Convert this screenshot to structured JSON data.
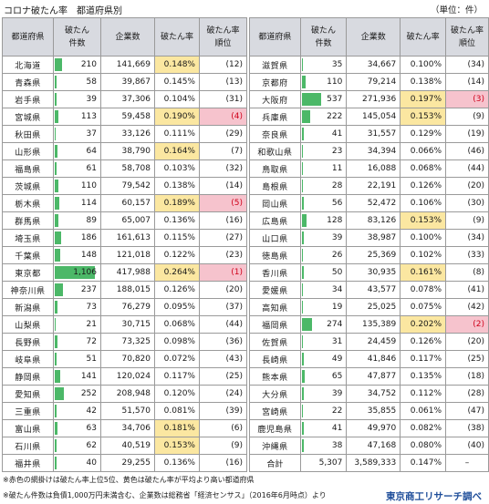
{
  "title": "コロナ破たん率　都道府県別",
  "unit": "（単位：件）",
  "headers": {
    "pref": "都道府県",
    "count_line1": "破たん",
    "count_line2": "件数",
    "companies": "企業数",
    "rate": "破たん率",
    "rank_line1": "破たん率",
    "rank_line2": "順位"
  },
  "colors": {
    "bar": "#4cb868",
    "top5": "#f6c3cd",
    "above_avg": "#fbe7a1",
    "header": "#d8dae0",
    "source": "#1f4e9a"
  },
  "bar_max": 1106,
  "left_rows": [
    {
      "pref": "北海道",
      "count": 210,
      "count_text": "210",
      "companies": "141,669",
      "rate": "0.148%",
      "rank": "(12)",
      "hl": "yellow"
    },
    {
      "pref": "青森県",
      "count": 58,
      "count_text": "58",
      "companies": "39,867",
      "rate": "0.145%",
      "rank": "(13)",
      "hl": ""
    },
    {
      "pref": "岩手県",
      "count": 39,
      "count_text": "39",
      "companies": "37,306",
      "rate": "0.104%",
      "rank": "(31)",
      "hl": ""
    },
    {
      "pref": "宮城県",
      "count": 113,
      "count_text": "113",
      "companies": "59,458",
      "rate": "0.190%",
      "rank": "(4)",
      "hl": "top"
    },
    {
      "pref": "秋田県",
      "count": 37,
      "count_text": "37",
      "companies": "33,126",
      "rate": "0.111%",
      "rank": "(29)",
      "hl": ""
    },
    {
      "pref": "山形県",
      "count": 64,
      "count_text": "64",
      "companies": "38,790",
      "rate": "0.164%",
      "rank": "(7)",
      "hl": "yellow"
    },
    {
      "pref": "福島県",
      "count": 61,
      "count_text": "61",
      "companies": "58,708",
      "rate": "0.103%",
      "rank": "(32)",
      "hl": ""
    },
    {
      "pref": "茨城県",
      "count": 110,
      "count_text": "110",
      "companies": "79,542",
      "rate": "0.138%",
      "rank": "(14)",
      "hl": ""
    },
    {
      "pref": "栃木県",
      "count": 114,
      "count_text": "114",
      "companies": "60,157",
      "rate": "0.189%",
      "rank": "(5)",
      "hl": "top"
    },
    {
      "pref": "群馬県",
      "count": 89,
      "count_text": "89",
      "companies": "65,007",
      "rate": "0.136%",
      "rank": "(16)",
      "hl": ""
    },
    {
      "pref": "埼玉県",
      "count": 186,
      "count_text": "186",
      "companies": "161,613",
      "rate": "0.115%",
      "rank": "(27)",
      "hl": ""
    },
    {
      "pref": "千葉県",
      "count": 148,
      "count_text": "148",
      "companies": "121,018",
      "rate": "0.122%",
      "rank": "(23)",
      "hl": ""
    },
    {
      "pref": "東京都",
      "count": 1106,
      "count_text": "1,106",
      "companies": "417,988",
      "rate": "0.264%",
      "rank": "(1)",
      "hl": "top"
    },
    {
      "pref": "神奈川県",
      "count": 237,
      "count_text": "237",
      "companies": "188,015",
      "rate": "0.126%",
      "rank": "(20)",
      "hl": ""
    },
    {
      "pref": "新潟県",
      "count": 73,
      "count_text": "73",
      "companies": "76,279",
      "rate": "0.095%",
      "rank": "(37)",
      "hl": ""
    },
    {
      "pref": "山梨県",
      "count": 21,
      "count_text": "21",
      "companies": "30,715",
      "rate": "0.068%",
      "rank": "(44)",
      "hl": ""
    },
    {
      "pref": "長野県",
      "count": 72,
      "count_text": "72",
      "companies": "73,325",
      "rate": "0.098%",
      "rank": "(36)",
      "hl": ""
    },
    {
      "pref": "岐阜県",
      "count": 51,
      "count_text": "51",
      "companies": "70,820",
      "rate": "0.072%",
      "rank": "(43)",
      "hl": ""
    },
    {
      "pref": "静岡県",
      "count": 141,
      "count_text": "141",
      "companies": "120,024",
      "rate": "0.117%",
      "rank": "(25)",
      "hl": ""
    },
    {
      "pref": "愛知県",
      "count": 252,
      "count_text": "252",
      "companies": "208,948",
      "rate": "0.120%",
      "rank": "(24)",
      "hl": ""
    },
    {
      "pref": "三重県",
      "count": 42,
      "count_text": "42",
      "companies": "51,570",
      "rate": "0.081%",
      "rank": "(39)",
      "hl": ""
    },
    {
      "pref": "富山県",
      "count": 63,
      "count_text": "63",
      "companies": "34,706",
      "rate": "0.181%",
      "rank": "(6)",
      "hl": "yellow"
    },
    {
      "pref": "石川県",
      "count": 62,
      "count_text": "62",
      "companies": "40,519",
      "rate": "0.153%",
      "rank": "(9)",
      "hl": "yellow"
    },
    {
      "pref": "福井県",
      "count": 40,
      "count_text": "40",
      "companies": "29,255",
      "rate": "0.136%",
      "rank": "(16)",
      "hl": ""
    }
  ],
  "right_rows": [
    {
      "pref": "滋賀県",
      "count": 35,
      "count_text": "35",
      "companies": "34,667",
      "rate": "0.100%",
      "rank": "(34)",
      "hl": ""
    },
    {
      "pref": "京都府",
      "count": 110,
      "count_text": "110",
      "companies": "79,214",
      "rate": "0.138%",
      "rank": "(14)",
      "hl": ""
    },
    {
      "pref": "大阪府",
      "count": 537,
      "count_text": "537",
      "companies": "271,936",
      "rate": "0.197%",
      "rank": "(3)",
      "hl": "top"
    },
    {
      "pref": "兵庫県",
      "count": 222,
      "count_text": "222",
      "companies": "145,054",
      "rate": "0.153%",
      "rank": "(9)",
      "hl": "yellow"
    },
    {
      "pref": "奈良県",
      "count": 41,
      "count_text": "41",
      "companies": "31,557",
      "rate": "0.129%",
      "rank": "(19)",
      "hl": ""
    },
    {
      "pref": "和歌山県",
      "count": 23,
      "count_text": "23",
      "companies": "34,394",
      "rate": "0.066%",
      "rank": "(46)",
      "hl": ""
    },
    {
      "pref": "鳥取県",
      "count": 11,
      "count_text": "11",
      "companies": "16,088",
      "rate": "0.068%",
      "rank": "(44)",
      "hl": ""
    },
    {
      "pref": "島根県",
      "count": 28,
      "count_text": "28",
      "companies": "22,191",
      "rate": "0.126%",
      "rank": "(20)",
      "hl": ""
    },
    {
      "pref": "岡山県",
      "count": 56,
      "count_text": "56",
      "companies": "52,472",
      "rate": "0.106%",
      "rank": "(30)",
      "hl": ""
    },
    {
      "pref": "広島県",
      "count": 128,
      "count_text": "128",
      "companies": "83,126",
      "rate": "0.153%",
      "rank": "(9)",
      "hl": "yellow"
    },
    {
      "pref": "山口県",
      "count": 39,
      "count_text": "39",
      "companies": "38,987",
      "rate": "0.100%",
      "rank": "(34)",
      "hl": ""
    },
    {
      "pref": "徳島県",
      "count": 26,
      "count_text": "26",
      "companies": "25,369",
      "rate": "0.102%",
      "rank": "(33)",
      "hl": ""
    },
    {
      "pref": "香川県",
      "count": 50,
      "count_text": "50",
      "companies": "30,935",
      "rate": "0.161%",
      "rank": "(8)",
      "hl": "yellow"
    },
    {
      "pref": "愛媛県",
      "count": 34,
      "count_text": "34",
      "companies": "43,577",
      "rate": "0.078%",
      "rank": "(41)",
      "hl": ""
    },
    {
      "pref": "高知県",
      "count": 19,
      "count_text": "19",
      "companies": "25,025",
      "rate": "0.075%",
      "rank": "(42)",
      "hl": ""
    },
    {
      "pref": "福岡県",
      "count": 274,
      "count_text": "274",
      "companies": "135,389",
      "rate": "0.202%",
      "rank": "(2)",
      "hl": "top"
    },
    {
      "pref": "佐賀県",
      "count": 31,
      "count_text": "31",
      "companies": "24,459",
      "rate": "0.126%",
      "rank": "(20)",
      "hl": ""
    },
    {
      "pref": "長崎県",
      "count": 49,
      "count_text": "49",
      "companies": "41,846",
      "rate": "0.117%",
      "rank": "(25)",
      "hl": ""
    },
    {
      "pref": "熊本県",
      "count": 65,
      "count_text": "65",
      "companies": "47,877",
      "rate": "0.135%",
      "rank": "(18)",
      "hl": ""
    },
    {
      "pref": "大分県",
      "count": 39,
      "count_text": "39",
      "companies": "34,752",
      "rate": "0.112%",
      "rank": "(28)",
      "hl": ""
    },
    {
      "pref": "宮崎県",
      "count": 22,
      "count_text": "22",
      "companies": "35,855",
      "rate": "0.061%",
      "rank": "(47)",
      "hl": ""
    },
    {
      "pref": "鹿児島県",
      "count": 41,
      "count_text": "41",
      "companies": "49,970",
      "rate": "0.082%",
      "rank": "(38)",
      "hl": ""
    },
    {
      "pref": "沖縄県",
      "count": 38,
      "count_text": "38",
      "companies": "47,168",
      "rate": "0.080%",
      "rank": "(40)",
      "hl": ""
    }
  ],
  "total": {
    "label": "合計",
    "count": "5,307",
    "companies": "3,589,333",
    "rate": "0.147%",
    "rank": "–"
  },
  "notes": {
    "note1": "※赤色の網掛けは破たん率上位5位、黄色は破たん率が平均より高い都道府県",
    "note2": "※破たん件数は負債1,000万円未満含む、企業数は総務省「経済センサス」（2016年6月時点）より"
  },
  "source": "東京商工リサーチ調べ"
}
